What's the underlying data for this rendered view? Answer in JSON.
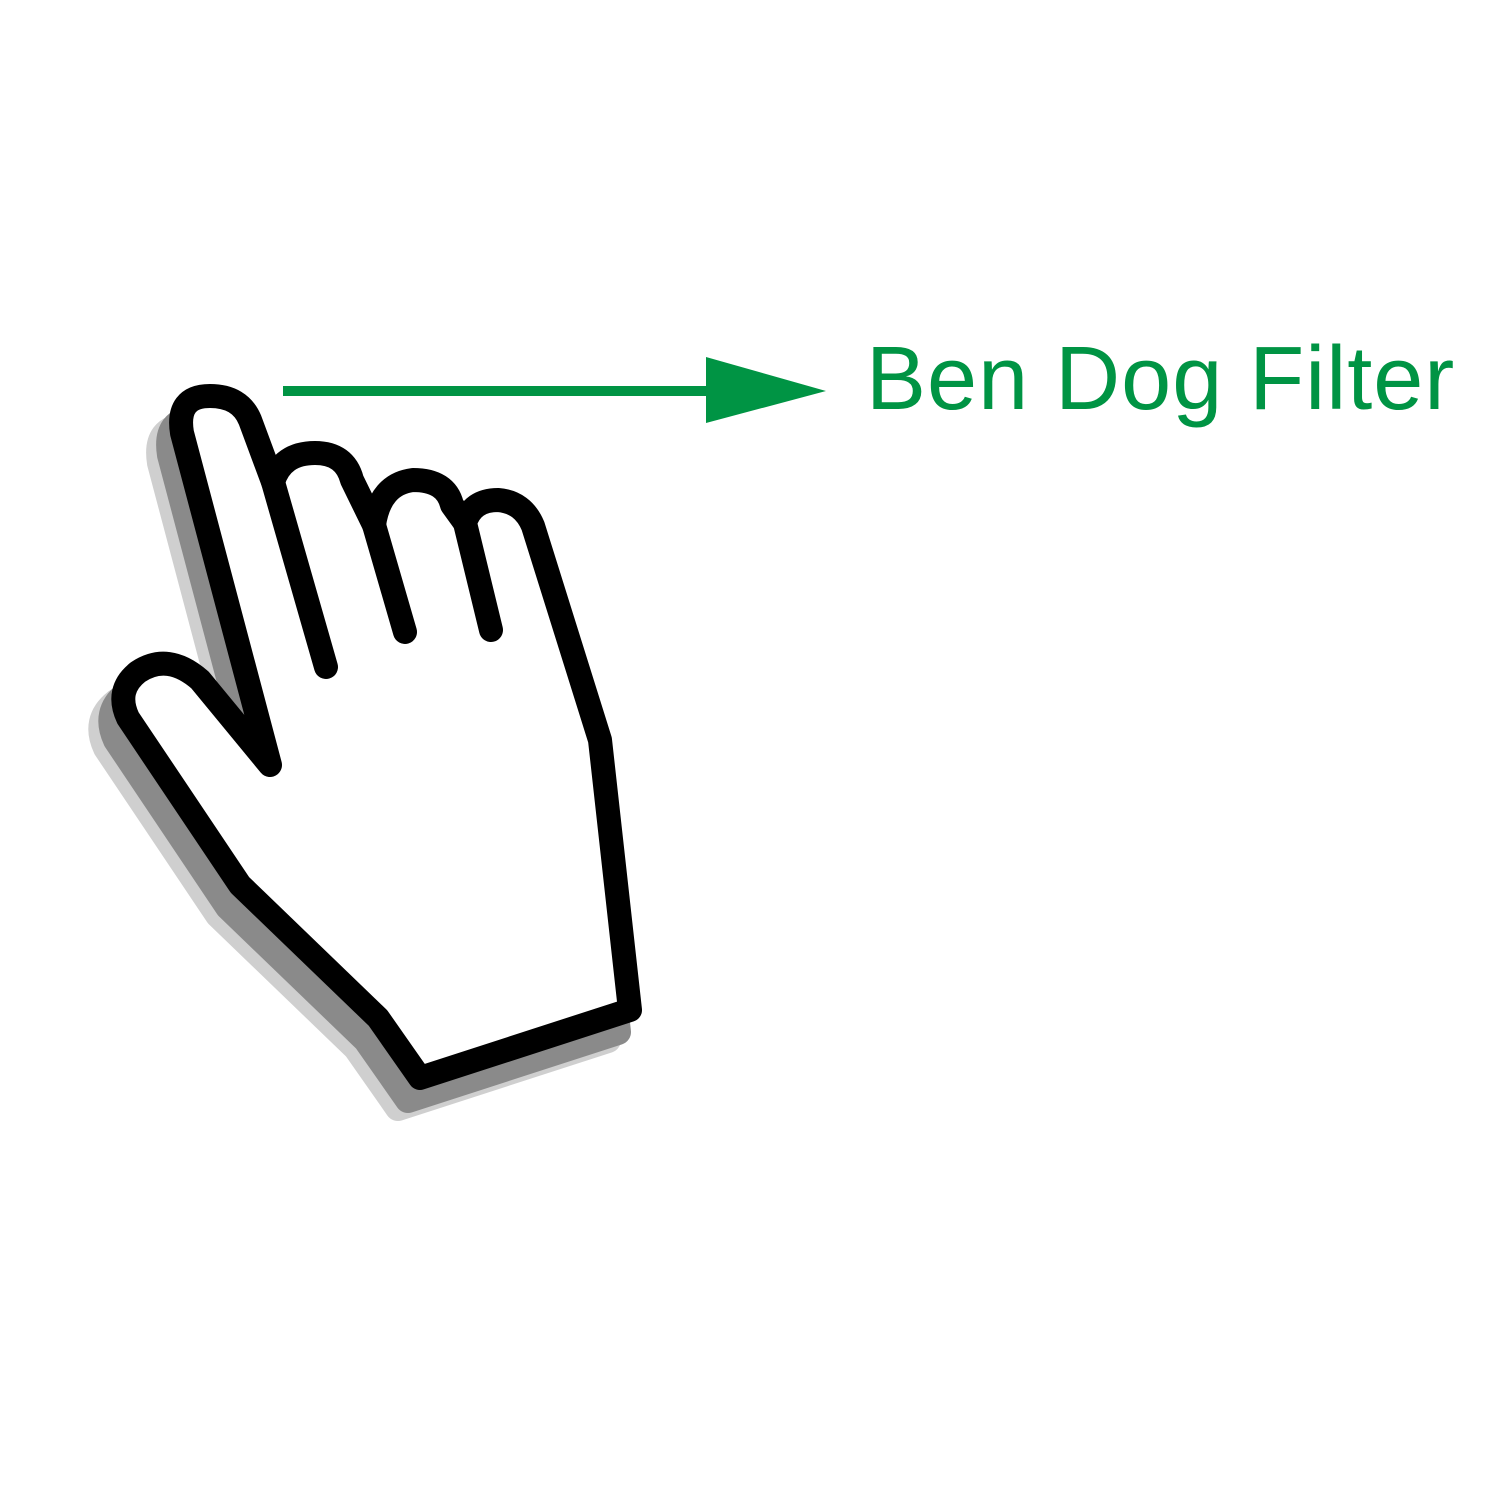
{
  "label": {
    "text": "Ben Dog Filter"
  },
  "colors": {
    "accent": "#009444",
    "outline": "#000000",
    "fill": "#ffffff",
    "shadow_dark": "#8a8a8a",
    "shadow_light": "#cfcfcf"
  },
  "icons": {
    "pointer": "hand-pointer-icon",
    "arrow": "arrow-right-icon"
  }
}
